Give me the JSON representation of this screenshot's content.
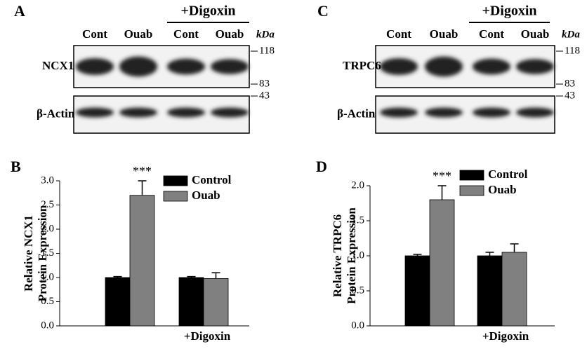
{
  "blots": [
    {
      "panel": "A",
      "group_label": "+Digoxin",
      "lanes": [
        "Cont",
        "Ouab",
        "Cont",
        "Ouab"
      ],
      "unit": "kDa",
      "rows": [
        {
          "label": "NCX1",
          "markers": [
            118,
            83
          ]
        },
        {
          "label": "β-Actin",
          "markers": [
            43
          ]
        }
      ]
    },
    {
      "panel": "C",
      "group_label": "+Digoxin",
      "lanes": [
        "Cont",
        "Ouab",
        "Cont",
        "Ouab"
      ],
      "unit": "kDa",
      "rows": [
        {
          "label": "TRPC6",
          "markers": [
            118,
            83
          ]
        },
        {
          "label": "β-Actin",
          "markers": [
            43
          ]
        }
      ]
    }
  ],
  "chart_data": [
    {
      "type": "bar",
      "panel": "B",
      "ylabel": [
        "Relative NCX1",
        "Protein Expression"
      ],
      "categories": [
        null,
        "+Digoxin"
      ],
      "series": [
        {
          "name": "Control",
          "color": "#000000",
          "values": [
            1.0,
            1.0
          ],
          "errors": [
            0.02,
            0.02
          ]
        },
        {
          "name": "Ouab",
          "color": "#808080",
          "values": [
            2.7,
            0.98
          ],
          "errors": [
            0.3,
            0.12
          ]
        }
      ],
      "annotation": "***",
      "ylim": [
        0,
        3.0
      ],
      "yticks": [
        {
          "value": 0,
          "label": "0.0"
        },
        {
          "value": 0.5,
          "label": "0.5"
        },
        {
          "value": 1,
          "label": "1.0"
        },
        {
          "value": 1.5,
          "label": "1.5"
        },
        {
          "value": 2,
          "label": "2.0"
        },
        {
          "value": 2.5,
          "label": "2.5"
        },
        {
          "value": 3,
          "label": "3.0"
        }
      ]
    },
    {
      "type": "bar",
      "panel": "D",
      "ylabel": [
        "Relative TRPC6",
        "Protein Expression"
      ],
      "categories": [
        null,
        "+Digoxin"
      ],
      "series": [
        {
          "name": "Control",
          "color": "#000000",
          "values": [
            1.0,
            1.0
          ],
          "errors": [
            0.02,
            0.05
          ]
        },
        {
          "name": "Ouab",
          "color": "#808080",
          "values": [
            1.8,
            1.05
          ],
          "errors": [
            0.2,
            0.12
          ]
        }
      ],
      "annotation": "***",
      "ylim": [
        0,
        2.0
      ],
      "yticks": [
        {
          "value": 0,
          "label": "0.0"
        },
        {
          "value": 0.5,
          "label": "0.5"
        },
        {
          "value": 1,
          "label": "1.0"
        },
        {
          "value": 1.5,
          "label": "1.5"
        },
        {
          "value": 2,
          "label": "2.0"
        }
      ]
    }
  ]
}
